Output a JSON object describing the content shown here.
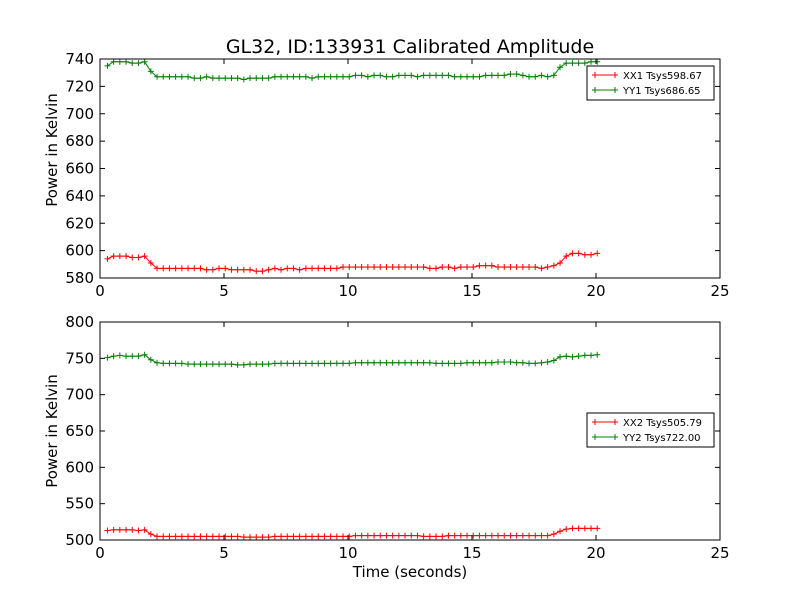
{
  "chart_data": [
    {
      "type": "line",
      "title": "GL32, ID:133931 Calibrated Amplitude",
      "xlabel": "",
      "ylabel": "Power in Kelvin",
      "xlim": [
        0,
        25
      ],
      "ylim": [
        580,
        740
      ],
      "xticks": [
        "0",
        "5",
        "10",
        "15",
        "20",
        "25"
      ],
      "yticks": [
        "580",
        "600",
        "620",
        "640",
        "660",
        "680",
        "700",
        "720",
        "740"
      ],
      "grid": false,
      "legend_position": "top-right",
      "x": [
        0.3,
        0.55,
        0.8,
        1.05,
        1.3,
        1.55,
        1.8,
        2.05,
        2.3,
        2.55,
        2.8,
        3.05,
        3.3,
        3.55,
        3.8,
        4.05,
        4.3,
        4.55,
        4.8,
        5.05,
        5.3,
        5.55,
        5.8,
        6.05,
        6.3,
        6.55,
        6.8,
        7.05,
        7.3,
        7.55,
        7.8,
        8.05,
        8.3,
        8.55,
        8.8,
        9.05,
        9.3,
        9.55,
        9.8,
        10.05,
        10.3,
        10.55,
        10.8,
        11.05,
        11.3,
        11.55,
        11.8,
        12.05,
        12.3,
        12.55,
        12.8,
        13.05,
        13.3,
        13.55,
        13.8,
        14.05,
        14.3,
        14.55,
        14.8,
        15.05,
        15.3,
        15.55,
        15.8,
        16.05,
        16.3,
        16.55,
        16.8,
        17.05,
        17.3,
        17.55,
        17.8,
        18.05,
        18.3,
        18.55,
        18.8,
        19.05,
        19.3,
        19.55,
        19.8,
        20.05
      ],
      "series": [
        {
          "name": "XX1 Tsys598.67",
          "color": "#ff0000",
          "values": [
            594,
            596,
            596,
            596,
            595,
            595,
            596,
            591,
            587,
            587,
            587,
            587,
            587,
            587,
            587,
            587,
            586,
            586,
            587,
            587,
            586,
            586,
            586,
            586,
            585,
            585,
            586,
            587,
            586,
            587,
            587,
            586,
            587,
            587,
            587,
            587,
            587,
            587,
            588,
            588,
            588,
            588,
            588,
            588,
            588,
            588,
            588,
            588,
            588,
            588,
            588,
            588,
            587,
            587,
            588,
            588,
            587,
            588,
            588,
            588,
            589,
            589,
            589,
            588,
            588,
            588,
            588,
            588,
            588,
            588,
            587,
            588,
            589,
            591,
            596,
            598,
            598,
            597,
            597,
            598
          ]
        },
        {
          "name": "YY1 Tsys686.65",
          "color": "#008000",
          "values": [
            735,
            738,
            738,
            738,
            737,
            737,
            738,
            731,
            727,
            727,
            727,
            727,
            727,
            727,
            726,
            726,
            727,
            726,
            726,
            726,
            726,
            726,
            725,
            726,
            726,
            726,
            726,
            727,
            727,
            727,
            727,
            727,
            727,
            726,
            727,
            727,
            727,
            727,
            727,
            727,
            728,
            728,
            727,
            728,
            728,
            727,
            727,
            728,
            728,
            728,
            727,
            728,
            728,
            728,
            728,
            728,
            727,
            727,
            727,
            727,
            727,
            728,
            728,
            728,
            728,
            729,
            729,
            728,
            727,
            727,
            728,
            727,
            728,
            734,
            737,
            737,
            737,
            737,
            738,
            738
          ]
        }
      ]
    },
    {
      "type": "line",
      "title": "",
      "xlabel": "Time (seconds)",
      "ylabel": "Power in Kelvin",
      "xlim": [
        0,
        25
      ],
      "ylim": [
        500,
        800
      ],
      "xticks": [
        "0",
        "5",
        "10",
        "15",
        "20",
        "25"
      ],
      "yticks": [
        "500",
        "550",
        "600",
        "650",
        "700",
        "750",
        "800"
      ],
      "grid": false,
      "legend_position": "center-right",
      "x": [
        0.3,
        0.55,
        0.8,
        1.05,
        1.3,
        1.55,
        1.8,
        2.05,
        2.3,
        2.55,
        2.8,
        3.05,
        3.3,
        3.55,
        3.8,
        4.05,
        4.3,
        4.55,
        4.8,
        5.05,
        5.3,
        5.55,
        5.8,
        6.05,
        6.3,
        6.55,
        6.8,
        7.05,
        7.3,
        7.55,
        7.8,
        8.05,
        8.3,
        8.55,
        8.8,
        9.05,
        9.3,
        9.55,
        9.8,
        10.05,
        10.3,
        10.55,
        10.8,
        11.05,
        11.3,
        11.55,
        11.8,
        12.05,
        12.3,
        12.55,
        12.8,
        13.05,
        13.3,
        13.55,
        13.8,
        14.05,
        14.3,
        14.55,
        14.8,
        15.05,
        15.3,
        15.55,
        15.8,
        16.05,
        16.3,
        16.55,
        16.8,
        17.05,
        17.3,
        17.55,
        17.8,
        18.05,
        18.3,
        18.55,
        18.8,
        19.05,
        19.3,
        19.55,
        19.8,
        20.05
      ],
      "series": [
        {
          "name": "XX2 Tsys505.79",
          "color": "#ff0000",
          "values": [
            513,
            514,
            514,
            514,
            514,
            513,
            514,
            508,
            505,
            505,
            505,
            505,
            505,
            505,
            505,
            505,
            505,
            505,
            505,
            505,
            505,
            505,
            504,
            504,
            504,
            504,
            504,
            505,
            505,
            505,
            505,
            505,
            505,
            505,
            505,
            505,
            505,
            505,
            505,
            505,
            506,
            506,
            506,
            506,
            506,
            506,
            506,
            506,
            506,
            506,
            506,
            505,
            505,
            505,
            505,
            506,
            506,
            506,
            506,
            506,
            506,
            506,
            506,
            506,
            506,
            506,
            506,
            506,
            506,
            506,
            506,
            506,
            508,
            512,
            515,
            516,
            516,
            516,
            516,
            516
          ]
        },
        {
          "name": "YY2 Tsys722.00",
          "color": "#008000",
          "values": [
            751,
            753,
            754,
            753,
            753,
            753,
            755,
            748,
            744,
            743,
            743,
            743,
            743,
            742,
            742,
            742,
            742,
            742,
            742,
            742,
            742,
            741,
            741,
            742,
            742,
            742,
            742,
            743,
            743,
            743,
            743,
            743,
            743,
            743,
            743,
            743,
            743,
            743,
            743,
            743,
            744,
            744,
            744,
            744,
            744,
            744,
            744,
            744,
            744,
            744,
            744,
            744,
            744,
            743,
            743,
            743,
            743,
            743,
            744,
            744,
            744,
            744,
            744,
            745,
            745,
            745,
            744,
            744,
            743,
            743,
            744,
            745,
            747,
            752,
            753,
            752,
            753,
            754,
            754,
            755
          ]
        }
      ]
    }
  ]
}
